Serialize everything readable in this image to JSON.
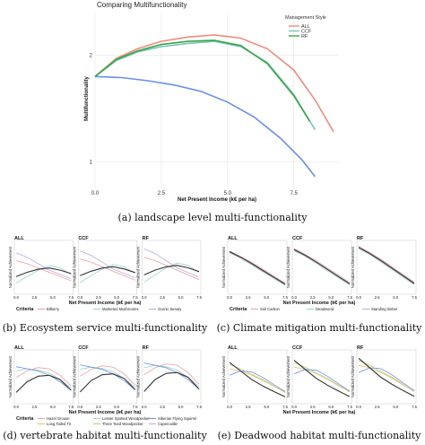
{
  "chart_data": [
    {
      "id": "a",
      "type": "line",
      "title": "Comparing Multifunctionality",
      "xlabel": "Net Present Income (k€ per ha)",
      "ylabel": "Multifunctionality",
      "xlim": [
        0,
        9.2
      ],
      "ylim": [
        0.75,
        2.4
      ],
      "xticks": [
        "0.0",
        "2.5",
        "5.0",
        "7.5"
      ],
      "xtick_values": [
        0,
        2.5,
        5,
        7.5
      ],
      "yticks": [
        "1",
        "2"
      ],
      "ytick_values": [
        1,
        2
      ],
      "legend": {
        "title": "Management Style",
        "position": "top-right"
      },
      "series": [
        {
          "name": "ALL",
          "color": "#f08b80",
          "x": [
            0,
            0.8,
            1.6,
            2.5,
            3.5,
            4.5,
            5.5,
            6.5,
            7.5,
            8.3,
            9.0
          ],
          "y": [
            1.8,
            1.97,
            2.06,
            2.13,
            2.17,
            2.19,
            2.16,
            2.06,
            1.86,
            1.58,
            1.28
          ]
        },
        {
          "name": "CCF",
          "color": "#7cc3b8",
          "x": [
            0,
            0.8,
            1.6,
            2.5,
            3.5,
            4.5,
            5.5,
            6.5,
            7.5,
            8.3
          ],
          "y": [
            1.8,
            1.95,
            2.03,
            2.08,
            2.11,
            2.13,
            2.08,
            1.93,
            1.63,
            1.3
          ]
        },
        {
          "name": "RF",
          "color": "#3aa54a",
          "x": [
            0,
            0.8,
            1.6,
            2.5,
            3.5,
            4.5,
            5.5,
            6.5,
            7.5,
            8.1
          ],
          "y": [
            1.8,
            1.96,
            2.04,
            2.1,
            2.13,
            2.14,
            2.09,
            1.92,
            1.62,
            1.38
          ]
        },
        {
          "name": "",
          "color": "#6b8ee8",
          "x": [
            0,
            1,
            2,
            3,
            4,
            5,
            6,
            7,
            7.8,
            8.3
          ],
          "y": [
            1.8,
            1.79,
            1.76,
            1.72,
            1.66,
            1.56,
            1.42,
            1.22,
            1.02,
            0.86
          ]
        }
      ],
      "caption": "(a)  landscape level multi-functionality"
    },
    {
      "id": "b",
      "type": "line",
      "panel_titles": [
        "ALL",
        "CCF",
        "RF"
      ],
      "xlabel": "Net Present Income (k€ per ha)",
      "ylabel": "Normalized Achievement",
      "legend_title": "Criteria",
      "legend": [
        "Bilberry",
        "Marketed Mushrooms",
        "Scenic beauty"
      ],
      "legend_colors": [
        "#e8a0a0",
        "#9bd2c5",
        "#c0a8e0"
      ],
      "series": [
        {
          "name": "Bilberry",
          "color": "#e8a0a0",
          "values": [
            0.72,
            0.65,
            0.55,
            0.45,
            0.35,
            0.25
          ]
        },
        {
          "name": "Marketed Mushrooms",
          "color": "#9bd2c5",
          "values": [
            0.2,
            0.35,
            0.5,
            0.6,
            0.55,
            0.4
          ]
        },
        {
          "name": "Scenic beauty",
          "color": "#c0a8e0",
          "values": [
            0.9,
            0.8,
            0.65,
            0.5,
            0.4,
            0.3
          ]
        },
        {
          "name": "",
          "color": "#333333",
          "values": [
            0.35,
            0.45,
            0.52,
            0.55,
            0.5,
            0.42
          ]
        }
      ],
      "caption": "(b)  Ecosystem service multi-functionality"
    },
    {
      "id": "c",
      "type": "line",
      "panel_titles": [
        "ALL",
        "CCF",
        "RF"
      ],
      "xlabel": "Net Present Income (k€ per ha)",
      "ylabel": "Normalized Achievement",
      "legend_title": "Criteria",
      "legend": [
        "Soil Carbon",
        "Deadwood",
        "Standing timber"
      ],
      "legend_colors": [
        "#e8a0a0",
        "#9bd2c5",
        "#c0a8e0"
      ],
      "series": [
        {
          "name": "Soil Carbon",
          "color": "#e8a0a0",
          "values": [
            0.95,
            0.82,
            0.68,
            0.52,
            0.36,
            0.2
          ]
        },
        {
          "name": "Deadwood",
          "color": "#9bd2c5",
          "values": [
            0.9,
            0.78,
            0.62,
            0.46,
            0.3,
            0.15
          ]
        },
        {
          "name": "Standing timber",
          "color": "#c0a8e0",
          "values": [
            0.92,
            0.8,
            0.66,
            0.5,
            0.34,
            0.18
          ]
        },
        {
          "name": "",
          "color": "#333333",
          "values": [
            0.93,
            0.8,
            0.65,
            0.49,
            0.33,
            0.17
          ]
        }
      ],
      "caption": "(c)  Climate mitigation multi-functionality"
    },
    {
      "id": "d",
      "type": "line",
      "panel_titles": [
        "ALL",
        "CCF",
        "RF"
      ],
      "xlabel": "Net Present Income (k€ per ha)",
      "ylabel": "Normalized Achievement",
      "legend_title": "Criteria",
      "legend": [
        "Hazel Grouse",
        "Lesser Spotted Woodpecker",
        "Siberian Flying Squirrel",
        "Long Tailed Tit",
        "Three Toed Woodpecker",
        "Capercaillie"
      ],
      "legend_colors": [
        "#e8a0a0",
        "#9bd2c5",
        "#6b8ee8",
        "#e8c070",
        "#b0d070",
        "#c0a8e0"
      ],
      "series": [
        {
          "name": "Hazel Grouse",
          "color": "#e8a0a0",
          "values": [
            0.55,
            0.7,
            0.78,
            0.75,
            0.6,
            0.35
          ]
        },
        {
          "name": "Lesser Spotted Woodpecker",
          "color": "#9bd2c5",
          "values": [
            0.7,
            0.75,
            0.72,
            0.65,
            0.5,
            0.3
          ]
        },
        {
          "name": "Siberian Flying Squirrel",
          "color": "#6b8ee8",
          "values": [
            0.8,
            0.75,
            0.7,
            0.6,
            0.45,
            0.25
          ]
        },
        {
          "name": "",
          "color": "#333333",
          "values": [
            0.2,
            0.45,
            0.58,
            0.6,
            0.5,
            0.25
          ]
        }
      ],
      "caption": "(d)  vertebrate habitat multi-functionality"
    },
    {
      "id": "e",
      "type": "line",
      "panel_titles": [
        "ALL",
        "CCF",
        "RF"
      ],
      "xlabel": "Net Present Income (k€ per ha)",
      "ylabel": "Normalized Achievement",
      "series": [
        {
          "name": "",
          "color": "#b0d070",
          "values": [
            0.85,
            0.75,
            0.62,
            0.5,
            0.35,
            0.2
          ]
        },
        {
          "name": "",
          "color": "#e8c070",
          "values": [
            0.75,
            0.7,
            0.6,
            0.48,
            0.34,
            0.2
          ]
        },
        {
          "name": "",
          "color": "#6b8ee8",
          "values": [
            0.6,
            0.7,
            0.68,
            0.55,
            0.38,
            0.22
          ]
        },
        {
          "name": "",
          "color": "#333333",
          "values": [
            0.9,
            0.7,
            0.5,
            0.35,
            0.22,
            0.1
          ]
        }
      ],
      "caption": "(e)  Deadwood habitat multi-functionality"
    }
  ]
}
